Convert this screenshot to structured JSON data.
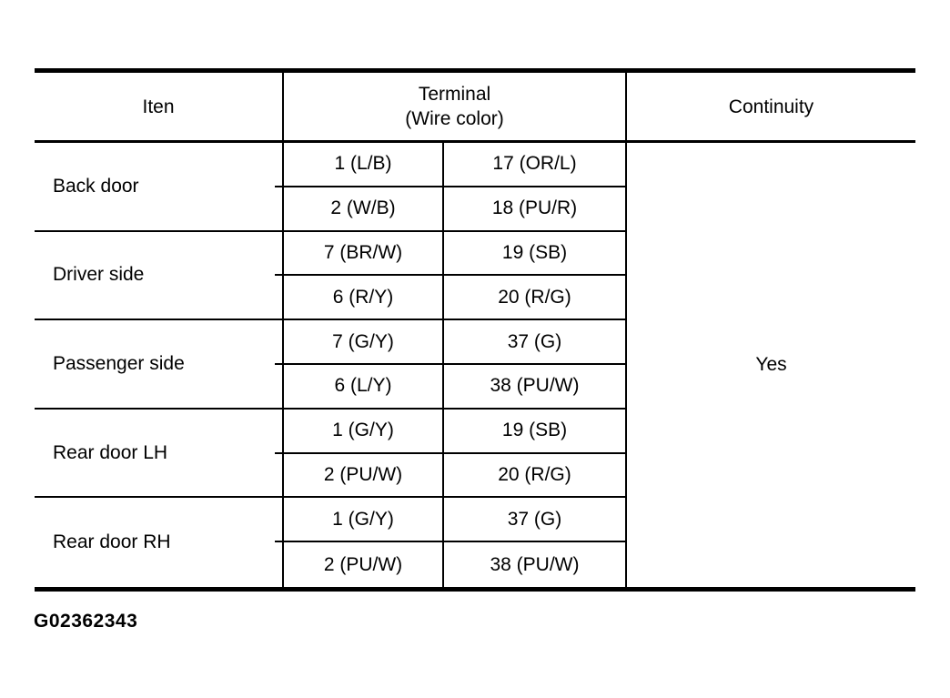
{
  "table": {
    "header": {
      "item": "Iten",
      "terminal_line1": "Terminal",
      "terminal_line2": "(Wire color)",
      "continuity": "Continuity"
    },
    "groups": [
      {
        "item": "Back door",
        "terminals": [
          {
            "left": "1 (L/B)",
            "right": "17 (OR/L)"
          },
          {
            "left": "2 (W/B)",
            "right": "18 (PU/R)"
          }
        ]
      },
      {
        "item": "Driver side",
        "terminals": [
          {
            "left": "7 (BR/W)",
            "right": "19 (SB)"
          },
          {
            "left": "6 (R/Y)",
            "right": "20 (R/G)"
          }
        ]
      },
      {
        "item": "Passenger side",
        "terminals": [
          {
            "left": "7 (G/Y)",
            "right": "37 (G)"
          },
          {
            "left": "6 (L/Y)",
            "right": "38 (PU/W)"
          }
        ]
      },
      {
        "item": "Rear door LH",
        "terminals": [
          {
            "left": "1 (G/Y)",
            "right": "19 (SB)"
          },
          {
            "left": "2 (PU/W)",
            "right": "20 (R/G)"
          }
        ]
      },
      {
        "item": "Rear door RH",
        "terminals": [
          {
            "left": "1 (G/Y)",
            "right": "37 (G)"
          },
          {
            "left": "2 (PU/W)",
            "right": "38 (PU/W)"
          }
        ]
      }
    ],
    "continuity_value": "Yes"
  },
  "figure_id": "G02362343",
  "colors": {
    "ink": "#000000",
    "paper": "#ffffff"
  }
}
